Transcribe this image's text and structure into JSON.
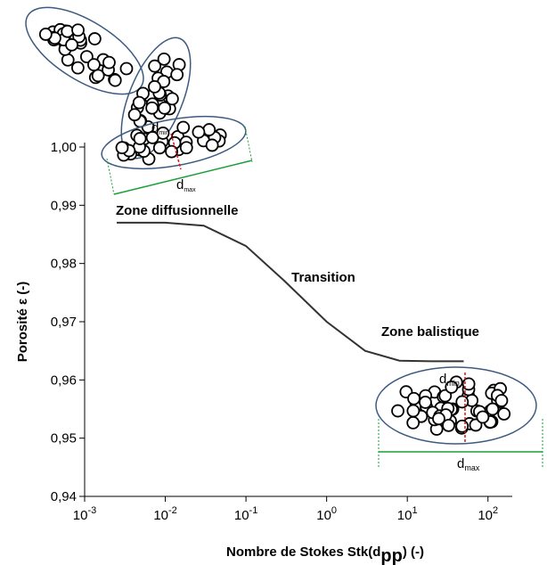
{
  "chart_data": {
    "type": "line",
    "xlabel": {
      "text": "Nombre de Stokes Stk(d",
      "subscript": "pp",
      "suffix": ") (-)"
    },
    "ylabel": "Porosité ε (-)",
    "log_x": true,
    "xlim": [
      0.001,
      200
    ],
    "ylim": [
      0.94,
      1.0
    ],
    "xticks": [
      {
        "value": 0.001,
        "label": "10",
        "exponent": "-3"
      },
      {
        "value": 0.01,
        "label": "10",
        "exponent": "-2"
      },
      {
        "value": 0.1,
        "label": "10",
        "exponent": "-1"
      },
      {
        "value": 1,
        "label": "10",
        "exponent": "0"
      },
      {
        "value": 10,
        "label": "10",
        "exponent": "1"
      },
      {
        "value": 100,
        "label": "10",
        "exponent": "2"
      }
    ],
    "yticks": [
      {
        "value": 0.94,
        "label": "0,94"
      },
      {
        "value": 0.95,
        "label": "0,95"
      },
      {
        "value": 0.96,
        "label": "0,96"
      },
      {
        "value": 0.97,
        "label": "0,97"
      },
      {
        "value": 0.98,
        "label": "0,98"
      },
      {
        "value": 0.99,
        "label": "0,99"
      },
      {
        "value": 1.0,
        "label": "1,00"
      }
    ],
    "x": [
      0.0025,
      0.01,
      0.03,
      0.1,
      0.3,
      1,
      3,
      8,
      20,
      50
    ],
    "series": [
      {
        "color": "#333333",
        "values": [
          0.987,
          0.987,
          0.9865,
          0.983,
          0.977,
          0.97,
          0.965,
          0.9633,
          0.9632,
          0.9632
        ]
      }
    ],
    "annotations": [
      {
        "text": "Zone diffusionnelle",
        "color": "#1f4fbf"
      },
      {
        "text": "Transition",
        "color": "#f0b400"
      },
      {
        "text": "Zone balistique",
        "color": "#e01010"
      }
    ],
    "diagram_labels": [
      {
        "text": "d",
        "sub": "min"
      },
      {
        "text": "d",
        "sub": "max"
      },
      {
        "text": "d",
        "sub": "min"
      },
      {
        "text": "d",
        "sub": "max"
      }
    ]
  }
}
